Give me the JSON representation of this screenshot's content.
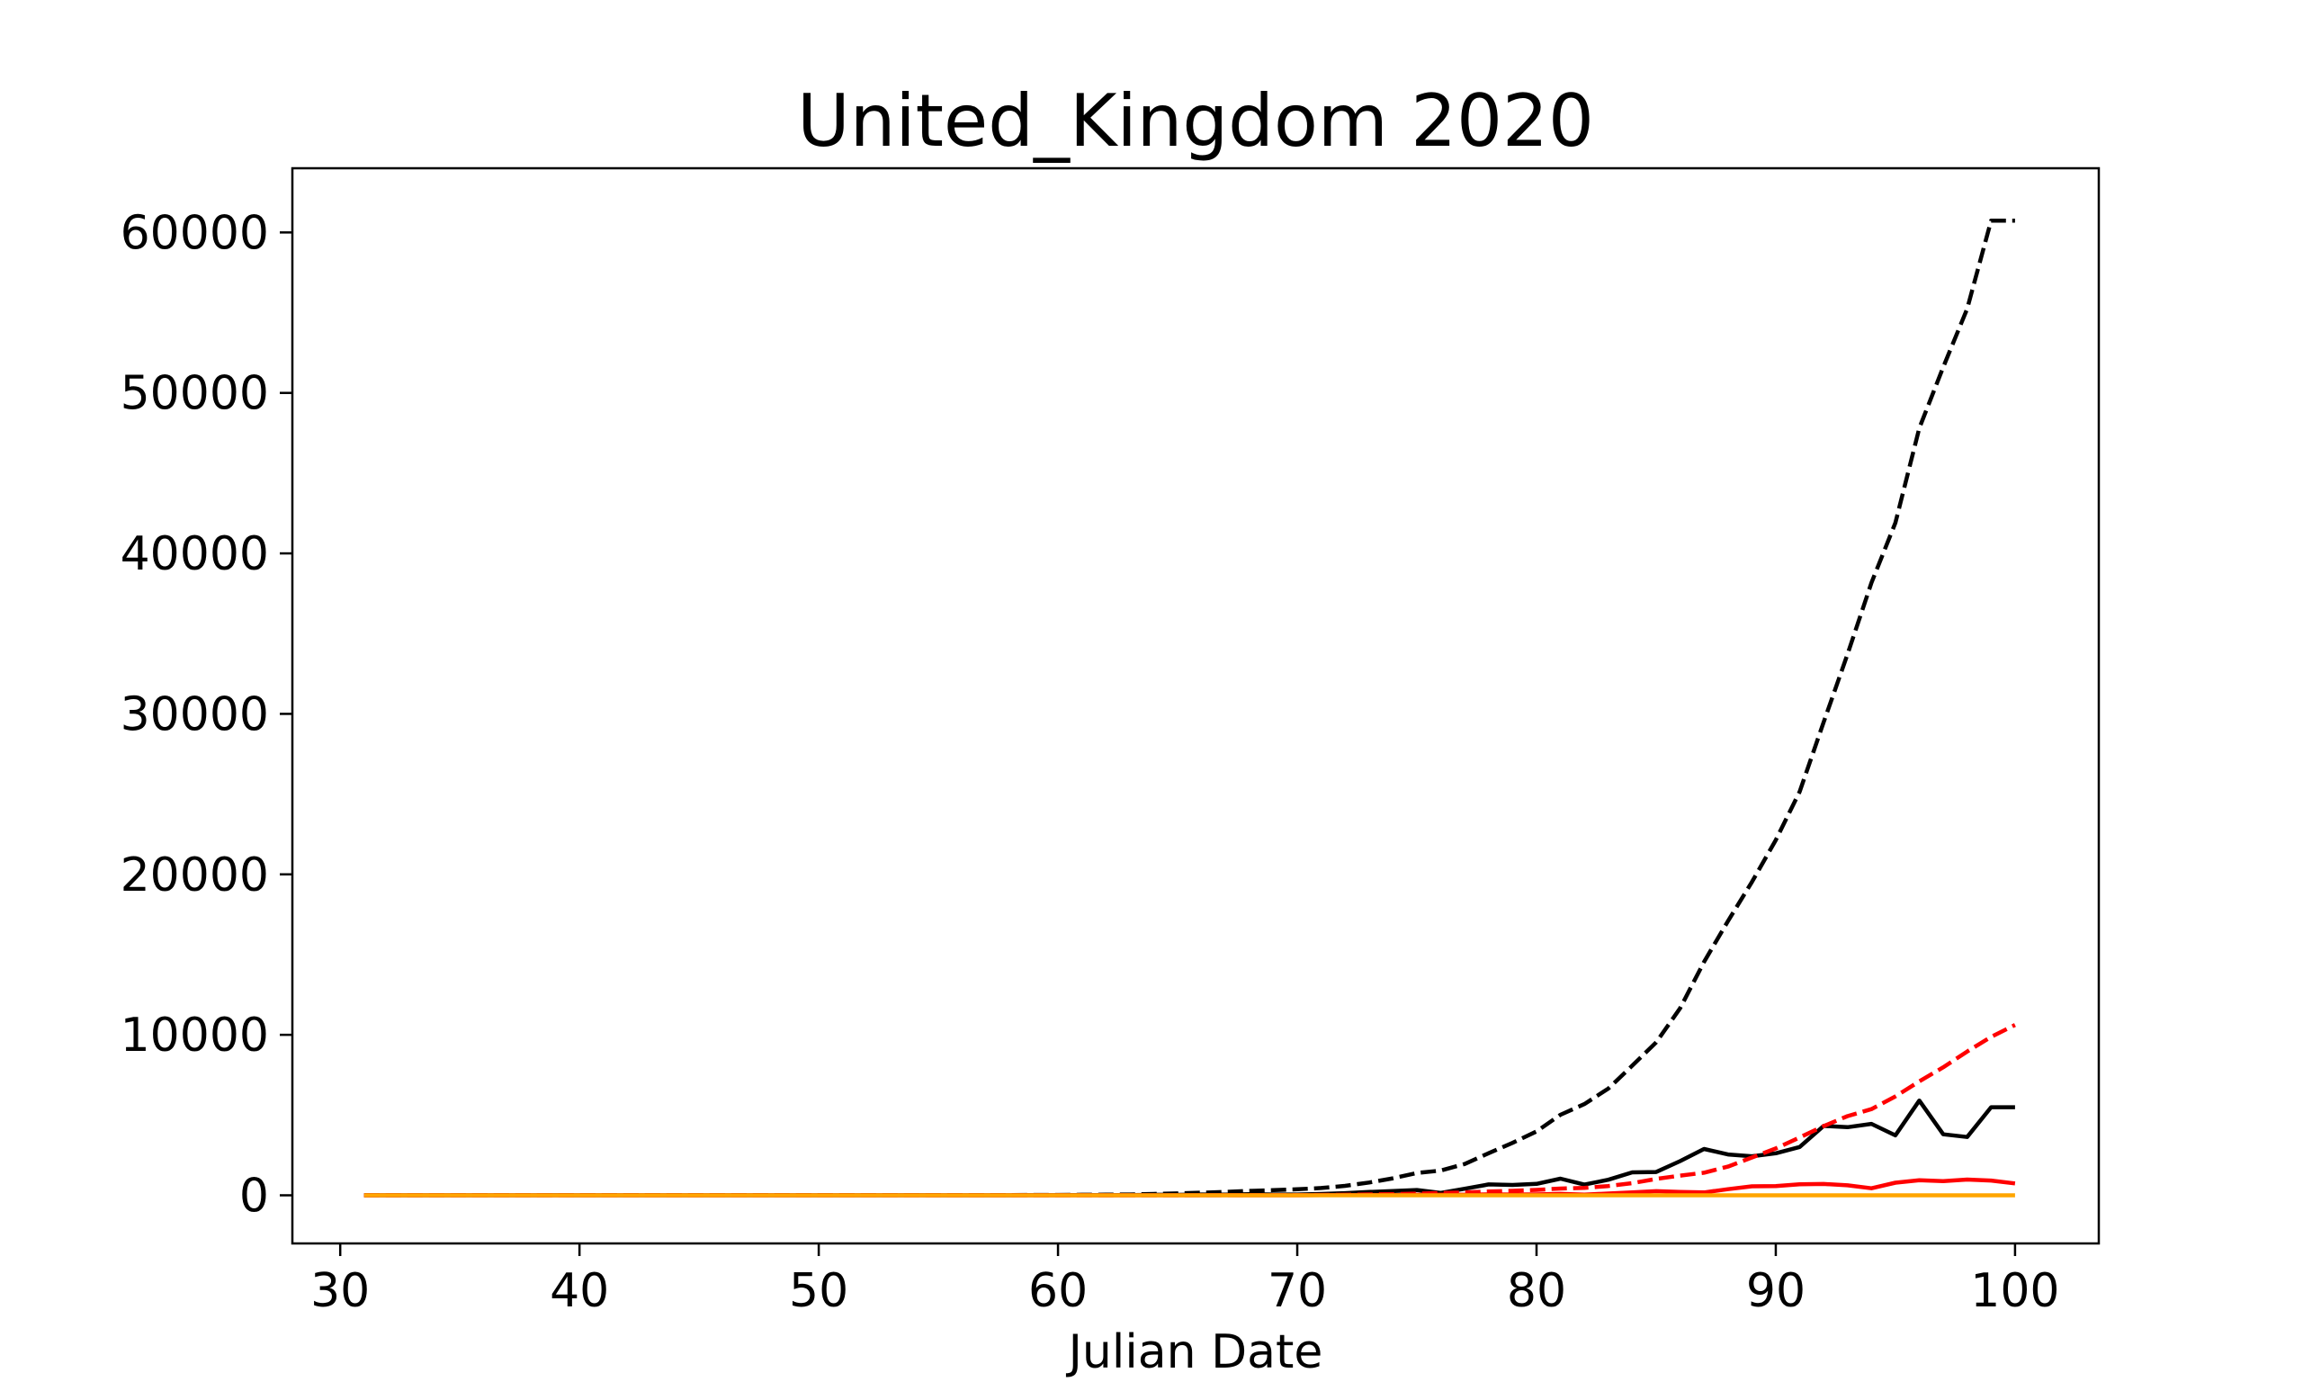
{
  "chart_data": {
    "type": "line",
    "title": "United_Kingdom 2020",
    "xlabel": "Julian Date",
    "ylabel": "",
    "xlim": [
      28,
      103.5
    ],
    "ylim": [
      -3000,
      64000
    ],
    "xticks": [
      30,
      40,
      50,
      60,
      70,
      80,
      90,
      100
    ],
    "yticks": [
      0,
      10000,
      20000,
      30000,
      40000,
      50000,
      60000
    ],
    "grid": false,
    "legend": "none",
    "x": [
      31,
      32,
      33,
      34,
      35,
      36,
      37,
      38,
      39,
      40,
      41,
      42,
      43,
      44,
      45,
      46,
      47,
      48,
      49,
      50,
      51,
      52,
      53,
      54,
      55,
      56,
      57,
      58,
      59,
      60,
      61,
      62,
      63,
      64,
      65,
      66,
      67,
      68,
      69,
      70,
      71,
      72,
      73,
      74,
      75,
      76,
      77,
      78,
      79,
      80,
      81,
      82,
      83,
      84,
      85,
      86,
      87,
      88,
      89,
      90,
      91,
      92,
      93,
      94,
      95,
      96,
      97,
      98,
      99,
      100
    ],
    "series": [
      {
        "color": "#000000",
        "style": "dashed",
        "values": [
          2,
          2,
          2,
          2,
          3,
          3,
          3,
          3,
          8,
          8,
          8,
          8,
          9,
          9,
          9,
          9,
          9,
          9,
          9,
          9,
          9,
          9,
          9,
          13,
          13,
          13,
          13,
          15,
          20,
          23,
          36,
          40,
          51,
          85,
          115,
          163,
          206,
          273,
          321,
          373,
          456,
          590,
          797,
          1061,
          1391,
          1543,
          1950,
          2626,
          3269,
          3983,
          5018,
          5683,
          6650,
          8077,
          9529,
          11658,
          14543,
          17089,
          19522,
          22141,
          25150,
          29474,
          33718,
          38168,
          41903,
          47806,
          51608,
          55242,
          60733,
          60733
        ]
      },
      {
        "color": "#000000",
        "style": "solid",
        "values": [
          2,
          0,
          0,
          0,
          1,
          0,
          0,
          0,
          5,
          0,
          0,
          0,
          1,
          0,
          0,
          0,
          0,
          0,
          0,
          0,
          0,
          0,
          0,
          4,
          0,
          0,
          0,
          2,
          5,
          3,
          13,
          4,
          11,
          34,
          30,
          48,
          43,
          67,
          48,
          52,
          83,
          134,
          207,
          264,
          330,
          152,
          407,
          676,
          643,
          714,
          1035,
          665,
          967,
          1427,
          1452,
          2129,
          2885,
          2546,
          2433,
          2619,
          3009,
          4324,
          4244,
          4450,
          3735,
          5903,
          3802,
          3634,
          5491,
          5491
        ]
      },
      {
        "color": "#ff0000",
        "style": "dashed",
        "values": [
          0,
          0,
          0,
          0,
          0,
          0,
          0,
          0,
          0,
          0,
          0,
          0,
          0,
          0,
          0,
          0,
          0,
          0,
          0,
          0,
          0,
          0,
          0,
          0,
          0,
          0,
          0,
          0,
          0,
          0,
          0,
          0,
          1,
          2,
          2,
          3,
          6,
          8,
          10,
          11,
          21,
          35,
          55,
          71,
          104,
          144,
          177,
          233,
          281,
          335,
          422,
          465,
          578,
          759,
          1019,
          1228,
          1408,
          1789,
          2352,
          2921,
          3605,
          4313,
          4934,
          5373,
          6159,
          7097,
          7978,
          8958,
          9875,
          10612
        ]
      },
      {
        "color": "#ff0000",
        "style": "solid",
        "values": [
          0,
          0,
          0,
          0,
          0,
          0,
          0,
          0,
          0,
          0,
          0,
          0,
          0,
          0,
          0,
          0,
          0,
          0,
          0,
          0,
          0,
          0,
          0,
          0,
          0,
          0,
          0,
          0,
          0,
          0,
          0,
          0,
          1,
          1,
          0,
          1,
          3,
          2,
          2,
          1,
          10,
          14,
          20,
          16,
          33,
          40,
          33,
          56,
          48,
          54,
          87,
          43,
          113,
          181,
          260,
          209,
          180,
          381,
          563,
          569,
          684,
          708,
          621,
          439,
          786,
          938,
          881,
          980,
          917,
          737
        ]
      },
      {
        "color": "#ffa500",
        "style": "solid",
        "values": [
          0,
          0,
          0,
          0,
          0,
          0,
          0,
          0,
          0,
          0,
          0,
          0,
          0,
          0,
          0,
          0,
          0,
          0,
          0,
          0,
          0,
          0,
          0,
          0,
          0,
          0,
          0,
          0,
          0,
          0,
          0,
          0,
          0,
          0,
          0,
          0,
          0,
          0,
          0,
          0,
          0,
          0,
          0,
          0,
          0,
          0,
          0,
          0,
          0,
          0,
          0,
          0,
          0,
          0,
          0,
          0,
          0,
          0,
          0,
          0,
          0,
          0,
          0,
          0,
          0,
          0,
          0,
          0,
          0,
          0
        ]
      }
    ]
  }
}
